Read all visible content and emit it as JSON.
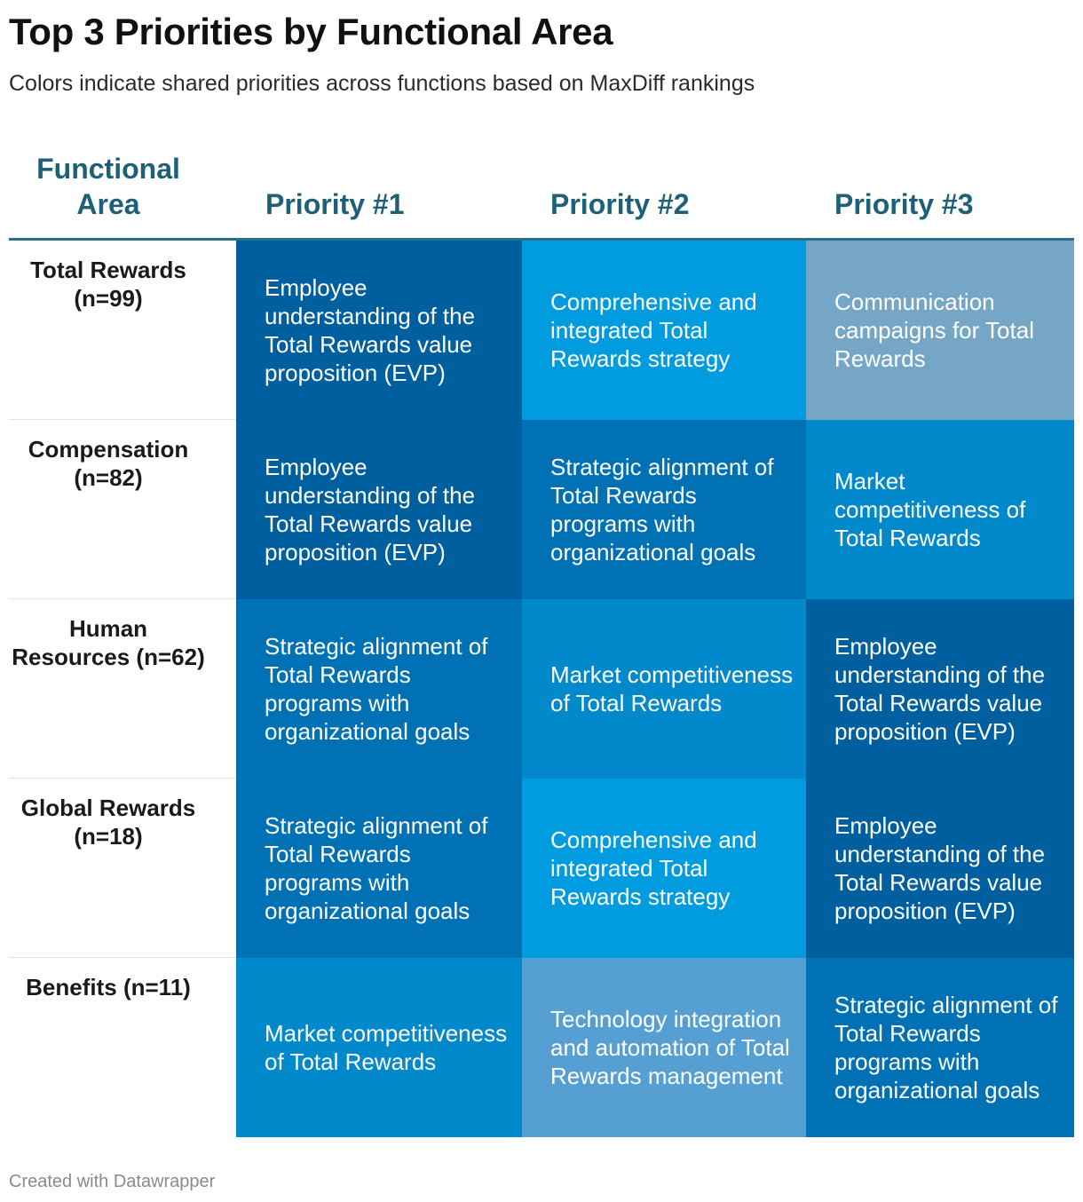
{
  "title": "Top 3 Priorities by Functional Area",
  "subtitle": "Colors indicate shared priorities across functions based on MaxDiff rankings",
  "footer": "Created with Datawrapper",
  "colors": {
    "header_text": "#1f6079",
    "header_rule": "#2b6f86"
  },
  "chart_data": {
    "type": "table",
    "columns": [
      "Functional Area",
      "Priority #1",
      "Priority #2",
      "Priority #3"
    ],
    "rows": [
      {
        "area": "Total Rewards (n=99)",
        "cells": [
          {
            "text": "Employee understanding of the Total Rewards value proposition (EVP)",
            "color": "#005f9e"
          },
          {
            "text": "Comprehensive and integrated Total Rewards strategy",
            "color": "#009cdf"
          },
          {
            "text": "Communication campaigns for Total Rewards",
            "color": "#76a6c6"
          }
        ]
      },
      {
        "area": "Compensation (n=82)",
        "cells": [
          {
            "text": "Employee understanding of the Total Rewards value proposition (EVP)",
            "color": "#005f9e"
          },
          {
            "text": "Strategic alignment of Total Rewards programs with organizational goals",
            "color": "#0071b4"
          },
          {
            "text": "Market competitiveness of Total Rewards",
            "color": "#0289cc"
          }
        ]
      },
      {
        "area": "Human Resources (n=62)",
        "cells": [
          {
            "text": "Strategic alignment of Total Rewards programs with organizational goals",
            "color": "#0071b4"
          },
          {
            "text": "Market competitiveness of Total Rewards",
            "color": "#0289cc"
          },
          {
            "text": "Employee understanding of the Total Rewards value proposition (EVP)",
            "color": "#005f9e"
          }
        ]
      },
      {
        "area": "Global Rewards (n=18)",
        "cells": [
          {
            "text": "Strategic alignment of Total Rewards programs with organizational goals",
            "color": "#0071b4"
          },
          {
            "text": "Comprehensive and integrated Total Rewards strategy",
            "color": "#009cdf"
          },
          {
            "text": "Employee understanding of the Total Rewards value proposition (EVP)",
            "color": "#005f9e"
          }
        ]
      },
      {
        "area": "Benefits (n=11)",
        "cells": [
          {
            "text": "Market competitiveness of Total Rewards",
            "color": "#0289cc"
          },
          {
            "text": "Technology integration and automation of Total Rewards management",
            "color": "#559fd3"
          },
          {
            "text": "Strategic alignment of Total Rewards programs with organizational goals",
            "color": "#0071b4"
          }
        ]
      }
    ]
  }
}
